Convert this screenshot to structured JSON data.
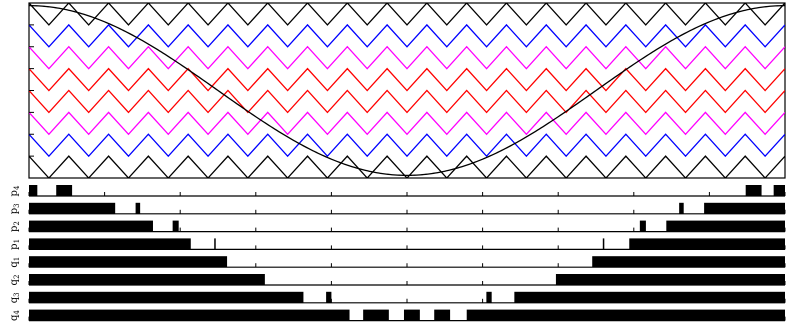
{
  "chart_data": {
    "type": "line",
    "description_free": true,
    "carrier_chart": {
      "x_range": [
        0,
        1
      ],
      "y_range": [
        -1,
        1
      ],
      "carrier_periods": 19,
      "carriers": [
        {
          "color": "#000000",
          "band": [
            0.75,
            1.0
          ]
        },
        {
          "color": "#0000ff",
          "band": [
            0.5,
            0.75
          ]
        },
        {
          "color": "#ff00ff",
          "band": [
            0.25,
            0.5
          ]
        },
        {
          "color": "#ff0000",
          "band": [
            0.0,
            0.25
          ]
        },
        {
          "color": "#ff0000",
          "band": [
            -0.25,
            0.0
          ]
        },
        {
          "color": "#ff00ff",
          "band": [
            -0.5,
            -0.25
          ]
        },
        {
          "color": "#0000ff",
          "band": [
            -0.75,
            -0.5
          ]
        },
        {
          "color": "#000000",
          "band": [
            -1.0,
            -0.75
          ]
        }
      ],
      "reference": {
        "color": "#000000",
        "waveform": "cosine",
        "amplitude": 0.97,
        "cycles": 1
      }
    },
    "gate_signals": {
      "x_range": [
        0,
        1
      ],
      "rows": [
        {
          "label": "p4",
          "base": "p",
          "sub": "4",
          "pulses": [
            [
              0.0,
              0.011
            ],
            [
              0.036,
              0.057
            ],
            [
              0.948,
              0.969
            ],
            [
              0.985,
              1.0
            ]
          ]
        },
        {
          "label": "p3",
          "base": "p",
          "sub": "3",
          "pulses": [
            [
              0.0,
              0.114
            ],
            [
              0.141,
              0.147
            ],
            [
              0.86,
              0.866
            ],
            [
              0.893,
              1.0
            ]
          ]
        },
        {
          "label": "p2",
          "base": "p",
          "sub": "2",
          "pulses": [
            [
              0.0,
              0.164
            ],
            [
              0.19,
              0.198
            ],
            [
              0.808,
              0.816
            ],
            [
              0.843,
              1.0
            ]
          ]
        },
        {
          "label": "p1",
          "base": "p",
          "sub": "1",
          "pulses": [
            [
              0.0,
              0.214
            ],
            [
              0.245,
              0.247
            ],
            [
              0.759,
              0.761
            ],
            [
              0.794,
              1.0
            ]
          ]
        },
        {
          "label": "q1",
          "base": "q",
          "sub": "1",
          "pulses": [
            [
              0.0,
              0.262
            ],
            [
              0.745,
              1.0
            ]
          ]
        },
        {
          "label": "q2",
          "base": "q",
          "sub": "2",
          "pulses": [
            [
              0.0,
              0.312
            ],
            [
              0.697,
              1.0
            ]
          ]
        },
        {
          "label": "q3",
          "base": "q",
          "sub": "3",
          "pulses": [
            [
              0.0,
              0.363
            ],
            [
              0.393,
              0.4
            ],
            [
              0.605,
              0.612
            ],
            [
              0.642,
              1.0
            ]
          ]
        },
        {
          "label": "q4",
          "base": "q",
          "sub": "4",
          "pulses": [
            [
              0.0,
              0.424
            ],
            [
              0.442,
              0.476
            ],
            [
              0.496,
              0.517
            ],
            [
              0.536,
              0.557
            ],
            [
              0.579,
              1.0
            ]
          ]
        }
      ],
      "tick_positions": [
        0,
        0.1,
        0.2,
        0.3,
        0.4,
        0.5,
        0.6,
        0.7,
        0.8,
        0.9,
        1.0
      ]
    }
  }
}
